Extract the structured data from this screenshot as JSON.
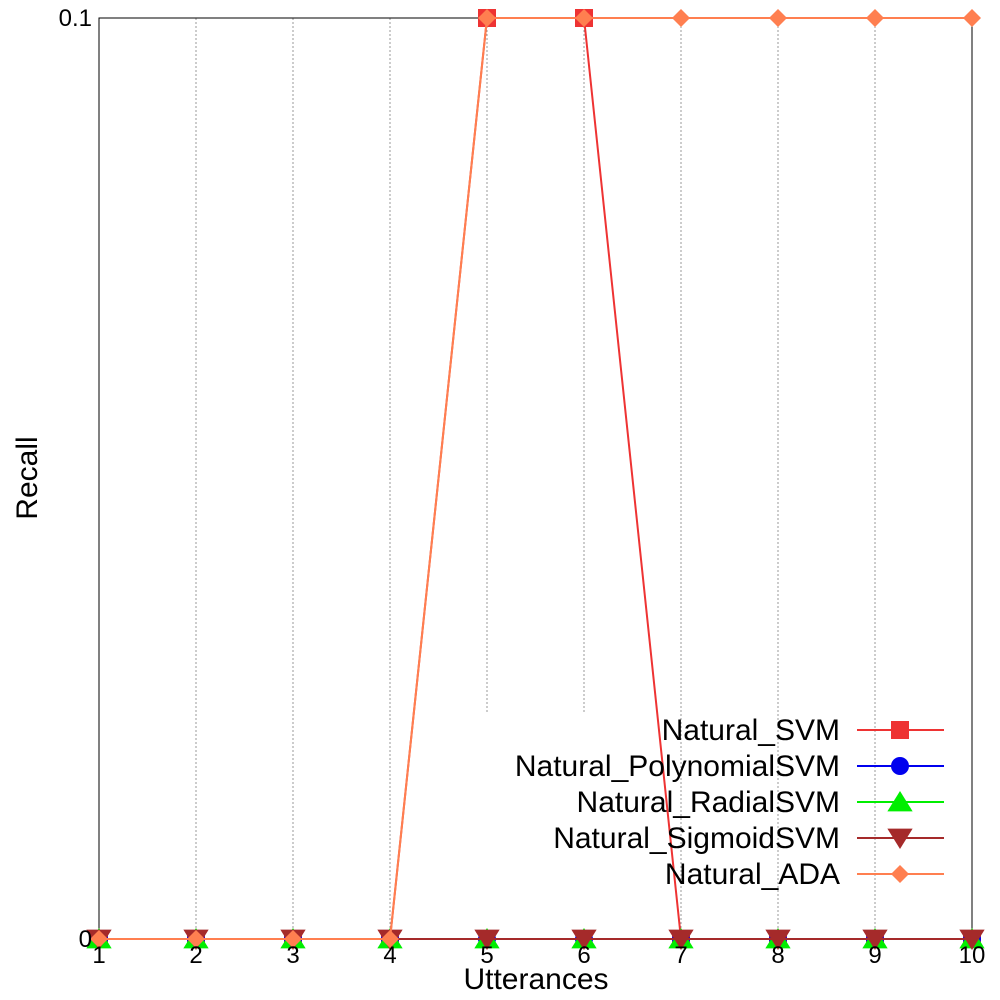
{
  "chart_data": {
    "type": "line",
    "title": "",
    "xlabel": "Utterances",
    "ylabel": "Recall",
    "x": [
      1,
      2,
      3,
      4,
      5,
      6,
      7,
      8,
      9,
      10
    ],
    "xlim": [
      1,
      10
    ],
    "ylim": [
      0,
      0.1
    ],
    "x_ticks": [
      "1",
      "2",
      "3",
      "4",
      "5",
      "6",
      "7",
      "8",
      "9",
      "10"
    ],
    "y_ticks": [
      "0",
      "0.1"
    ],
    "grid": "vertical dotted",
    "legend_position": "bottom-right",
    "series": [
      {
        "name": "Natural_SVM",
        "color": "#ee3333",
        "marker": "square",
        "values": [
          0,
          0,
          0,
          0,
          0.1,
          0.1,
          0,
          0,
          0,
          0
        ]
      },
      {
        "name": "Natural_PolynomialSVM",
        "color": "#0000ee",
        "marker": "circle",
        "values": [
          0,
          0,
          0,
          0,
          0,
          0,
          0,
          0,
          0,
          0
        ]
      },
      {
        "name": "Natural_RadialSVM",
        "color": "#00ee00",
        "marker": "triangle-up",
        "values": [
          0,
          0,
          0,
          0,
          0,
          0,
          0,
          0,
          0,
          0
        ]
      },
      {
        "name": "Natural_SigmoidSVM",
        "color": "#a52a2a",
        "marker": "triangle-down",
        "values": [
          0,
          0,
          0,
          0,
          0,
          0,
          0,
          0,
          0,
          0
        ]
      },
      {
        "name": "Natural_ADA",
        "color": "#ff7f50",
        "marker": "diamond",
        "values": [
          0,
          0,
          0,
          0,
          0.1,
          0.1,
          0.1,
          0.1,
          0.1,
          0.1
        ]
      }
    ]
  }
}
